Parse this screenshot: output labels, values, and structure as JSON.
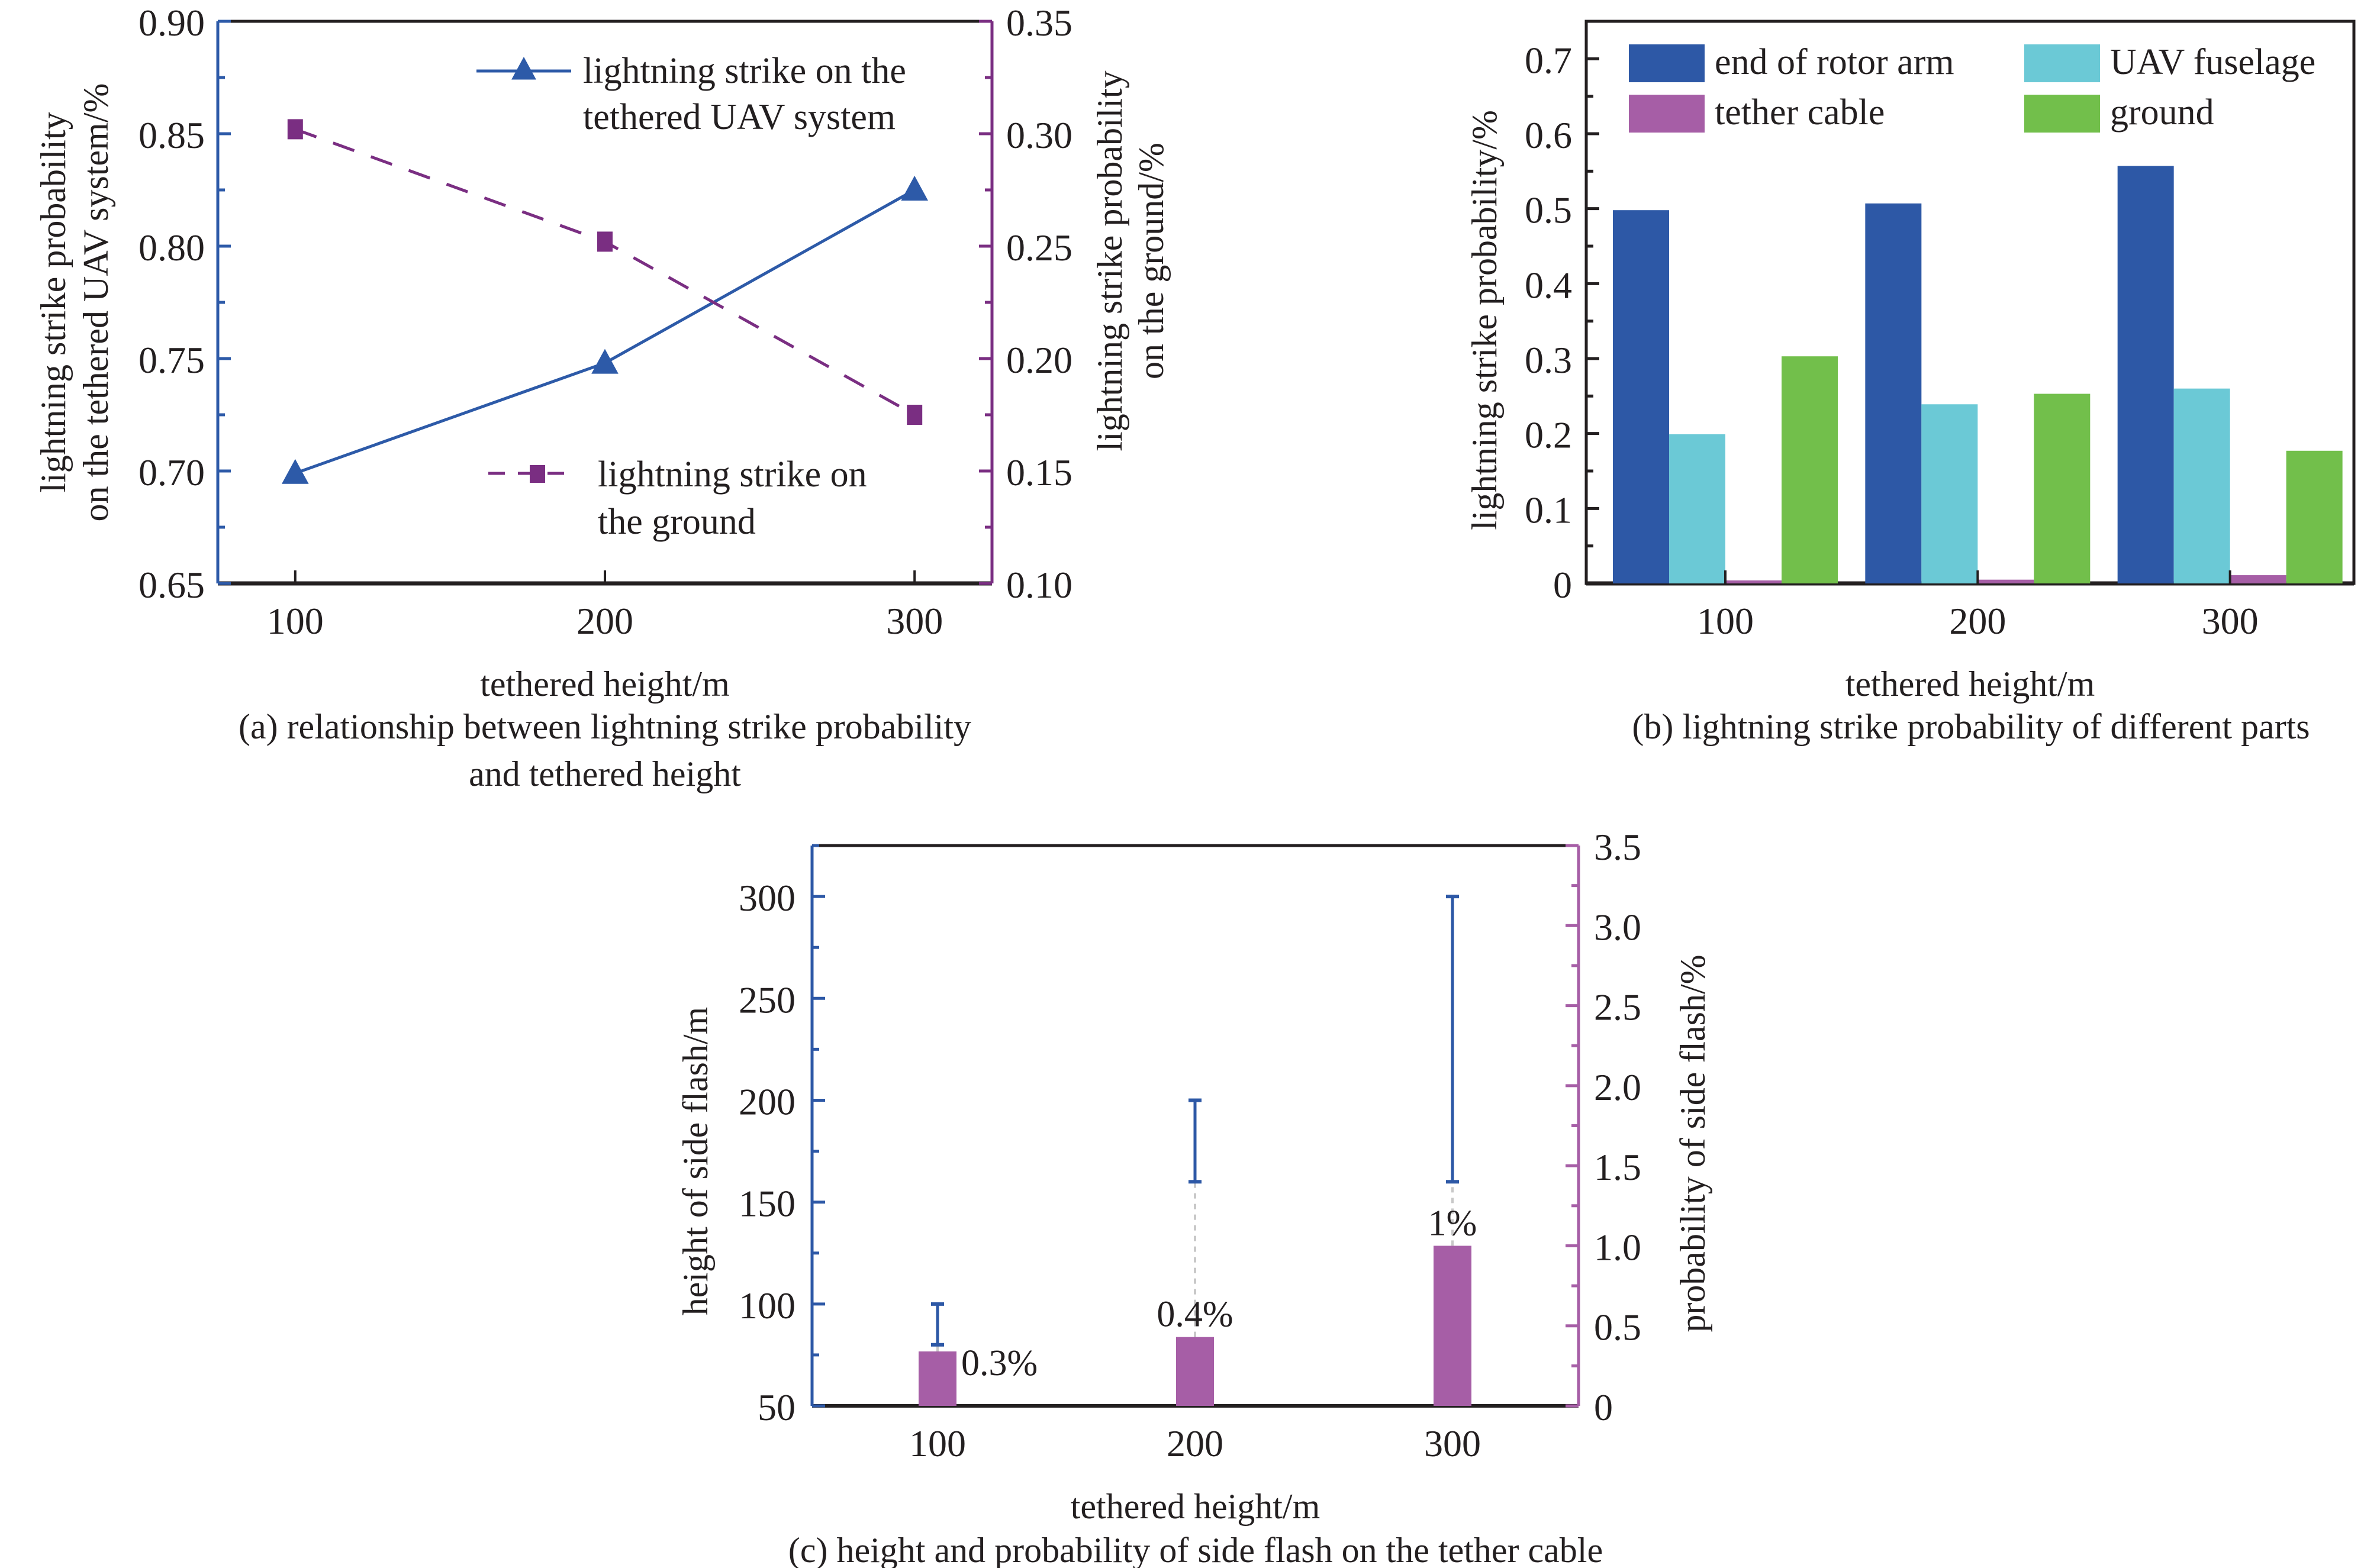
{
  "colors": {
    "uav_system": "#2d5aa8",
    "ground_line": "#7a2e82",
    "rotor_arm": "#2d58a6",
    "fuselage": "#6bc9d6",
    "tether": "#a65ea6",
    "ground_bar": "#72bf4b",
    "side_flash_bar": "#a65ea6",
    "error_bar": "#2d58a6",
    "axis": "#231f20",
    "connector": "#c8c8c8"
  },
  "chart_data": [
    {
      "id": "a",
      "type": "line",
      "caption": [
        "(a) relationship between lightning strike probability",
        "and tethered height"
      ],
      "xlabel": "tethered height/m",
      "ylabel": [
        "lightning strike probability",
        "on the tethered UAV system/%"
      ],
      "y2label": [
        "lightning strike probability",
        "on the ground/%"
      ],
      "x": [
        100,
        200,
        300
      ],
      "xlim": [
        75,
        325
      ],
      "xticks": [
        "100",
        "200",
        "300"
      ],
      "ylim": [
        0.65,
        0.9
      ],
      "yticks": [
        "0.65",
        "0.70",
        "0.75",
        "0.80",
        "0.85",
        "0.90"
      ],
      "y2lim": [
        0.1,
        0.35
      ],
      "y2ticks": [
        "0.10",
        "0.15",
        "0.20",
        "0.25",
        "0.30",
        "0.35"
      ],
      "grid": false,
      "series": [
        {
          "name": "lightning strike on the tethered UAV system",
          "legend": [
            "lightning strike on the",
            "tethered UAV system"
          ],
          "axis": "left",
          "marker": "triangle",
          "line": "solid",
          "values": [
            0.699,
            0.748,
            0.825
          ]
        },
        {
          "name": "lightning strike on the ground",
          "legend": [
            "lightning strike on",
            "the ground"
          ],
          "axis": "right",
          "marker": "square",
          "line": "dashed",
          "values": [
            0.302,
            0.252,
            0.175
          ]
        }
      ]
    },
    {
      "id": "b",
      "type": "bar",
      "caption": [
        "(b) lightning strike probability of different parts"
      ],
      "xlabel": "tethered height/m",
      "ylabel": [
        "lightning strike probability/%"
      ],
      "categories": [
        "100",
        "200",
        "300"
      ],
      "ylim": [
        0,
        0.75
      ],
      "yticks": [
        "0",
        "0.1",
        "0.2",
        "0.3",
        "0.4",
        "0.5",
        "0.6",
        "0.7"
      ],
      "grid": false,
      "legend_position": "top",
      "series": [
        {
          "name": "end of rotor arm",
          "values": [
            0.498,
            0.507,
            0.557
          ]
        },
        {
          "name": "UAV fuselage",
          "values": [
            0.199,
            0.239,
            0.26
          ]
        },
        {
          "name": "tether cable",
          "values": [
            0.004,
            0.005,
            0.011
          ]
        },
        {
          "name": "ground",
          "values": [
            0.303,
            0.253,
            0.177
          ]
        }
      ]
    },
    {
      "id": "c",
      "type": "bar",
      "caption": [
        "(c) height and probability of side flash on the tether cable"
      ],
      "xlabel": "tethered height/m",
      "ylabel": [
        "height of side flash/m"
      ],
      "y2label": [
        "probability of side flash/%"
      ],
      "categories": [
        "100",
        "200",
        "300"
      ],
      "ylim": [
        50,
        325
      ],
      "yticks": [
        "50",
        "100",
        "150",
        "200",
        "250",
        "300"
      ],
      "y2lim": [
        0,
        3.5
      ],
      "y2ticks": [
        "0",
        "0.5",
        "1.0",
        "1.5",
        "2.0",
        "2.5",
        "3.0",
        "3.5"
      ],
      "grid": false,
      "height_range": [
        {
          "low": 80,
          "high": 100
        },
        {
          "low": 160,
          "high": 200
        },
        {
          "low": 160,
          "high": 300
        }
      ],
      "probability": {
        "values": [
          0.34,
          0.43,
          1.0
        ],
        "labels": [
          "0.3%",
          "0.4%",
          "1%"
        ]
      }
    }
  ]
}
